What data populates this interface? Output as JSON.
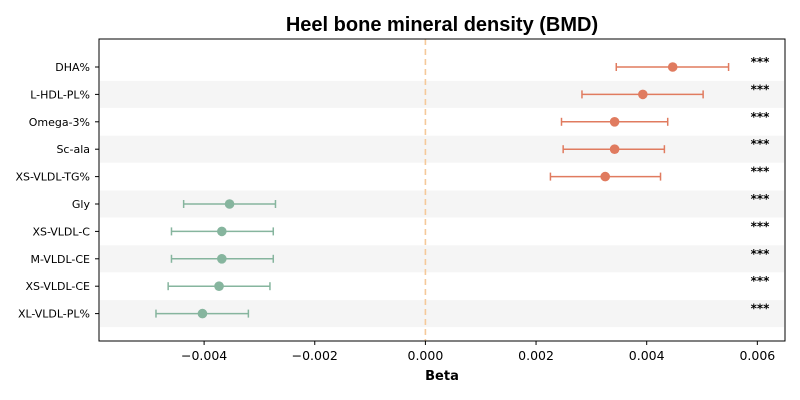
{
  "chart_data": {
    "type": "forest",
    "title": "Heel bone mineral density (BMD)",
    "xlabel": "Beta",
    "xlim": [
      -0.0059,
      0.0065
    ],
    "xticks": [
      -0.004,
      -0.002,
      0.0,
      0.002,
      0.004,
      0.006
    ],
    "xtick_labels": [
      "−0.004",
      "−0.002",
      "0.000",
      "0.002",
      "0.004",
      "0.006"
    ],
    "reference_line": 0.0,
    "row_shading": "alternating",
    "colors": {
      "positive": "#e07b5f",
      "negative": "#86b59e",
      "reference": "#f5c99a",
      "shade": "#f5f5f5"
    },
    "rows": [
      {
        "label": "DHA%",
        "beta": 0.00447,
        "ci_low": 0.00345,
        "ci_high": 0.00548,
        "sig": "***"
      },
      {
        "label": "L-HDL-PL%",
        "beta": 0.00393,
        "ci_low": 0.00283,
        "ci_high": 0.00502,
        "sig": "***"
      },
      {
        "label": "Omega-3%",
        "beta": 0.00342,
        "ci_low": 0.00246,
        "ci_high": 0.00438,
        "sig": "***"
      },
      {
        "label": "Sc-ala",
        "beta": 0.00342,
        "ci_low": 0.00249,
        "ci_high": 0.00432,
        "sig": "***"
      },
      {
        "label": "XS-VLDL-TG%",
        "beta": 0.00325,
        "ci_low": 0.00226,
        "ci_high": 0.00425,
        "sig": "***"
      },
      {
        "label": "Gly",
        "beta": -0.00354,
        "ci_low": -0.00437,
        "ci_high": -0.00271,
        "sig": "***"
      },
      {
        "label": "XS-VLDL-C",
        "beta": -0.00368,
        "ci_low": -0.00459,
        "ci_high": -0.00275,
        "sig": "***"
      },
      {
        "label": "M-VLDL-CE",
        "beta": -0.00368,
        "ci_low": -0.00459,
        "ci_high": -0.00275,
        "sig": "***"
      },
      {
        "label": "XS-VLDL-CE",
        "beta": -0.00373,
        "ci_low": -0.00465,
        "ci_high": -0.00281,
        "sig": "***"
      },
      {
        "label": "XL-VLDL-PL%",
        "beta": -0.00403,
        "ci_low": -0.00487,
        "ci_high": -0.0032,
        "sig": "***"
      }
    ]
  }
}
